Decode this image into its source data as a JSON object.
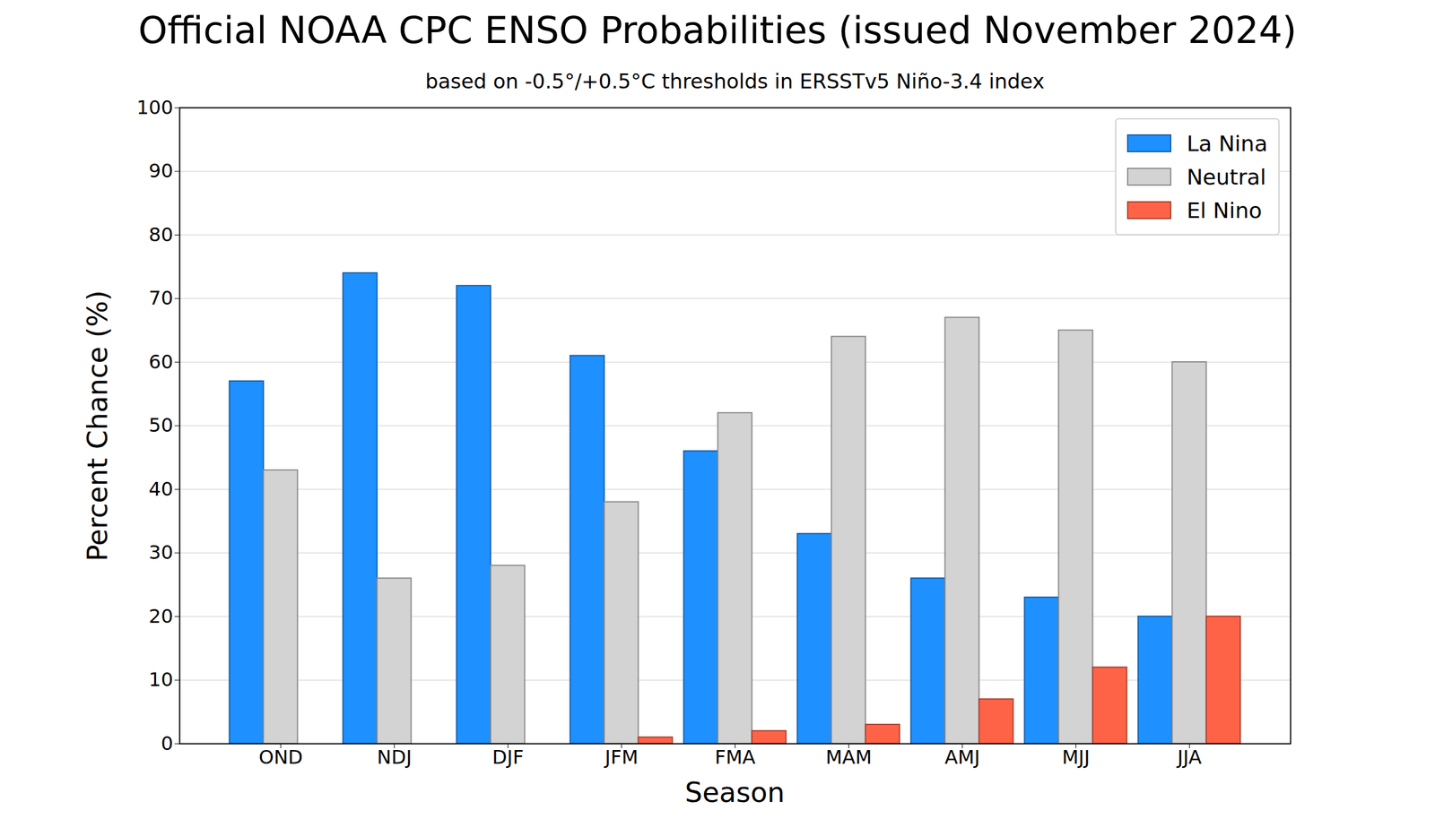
{
  "chart_data": {
    "type": "bar",
    "title": "Official NOAA CPC ENSO Probabilities (issued November 2024)",
    "subtitle": "based on -0.5°/+0.5°C thresholds in ERSSTv5 Niño-3.4 index",
    "x_label": "Season",
    "y_label": "Percent Chance (%)",
    "categories": [
      "OND",
      "NDJ",
      "DJF",
      "JFM",
      "FMA",
      "MAM",
      "AMJ",
      "MJJ",
      "JJA"
    ],
    "series": [
      {
        "name": "La Nina",
        "color": "#1e90ff",
        "values": [
          57,
          74,
          72,
          61,
          46,
          33,
          26,
          23,
          20
        ]
      },
      {
        "name": "Neutral",
        "color": "#d3d3d3",
        "values": [
          43,
          26,
          28,
          38,
          52,
          64,
          67,
          65,
          60
        ]
      },
      {
        "name": "El Nino",
        "color": "#ff6347",
        "values": [
          0,
          0,
          0,
          1,
          2,
          3,
          7,
          12,
          20
        ]
      }
    ],
    "ylim": [
      0,
      100
    ],
    "yticks": [
      0,
      10,
      20,
      30,
      40,
      50,
      60,
      70,
      80,
      90,
      100
    ],
    "grid": true,
    "legend": "upper right"
  }
}
